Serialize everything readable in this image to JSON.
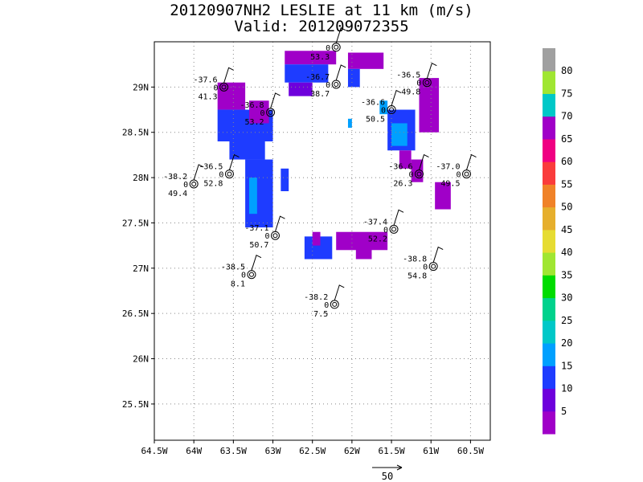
{
  "title_line1": "20120907NH2 LESLIE at 11 km (m/s)",
  "title_line2": "Valid: 201209072355",
  "chart_data": {
    "type": "heatmap",
    "title": "20120907NH2 LESLIE at 11 km (m/s)",
    "subtitle": "Valid: 201209072355",
    "xlim": [
      -64.5,
      -60.25
    ],
    "ylim": [
      25.1,
      29.5
    ],
    "x_ticks": [
      -64.5,
      -64,
      -63.5,
      -63,
      -62.5,
      -62,
      -61.5,
      -61,
      -60.5
    ],
    "x_tick_labels": [
      "64.5W",
      "64W",
      "63.5W",
      "63W",
      "62.5W",
      "62W",
      "61.5W",
      "61W",
      "60.5W"
    ],
    "y_ticks": [
      25.5,
      26,
      26.5,
      27,
      27.5,
      28,
      28.5,
      29
    ],
    "y_tick_labels": [
      "25.5N",
      "26N",
      "26.5N",
      "27N",
      "27.5N",
      "28N",
      "28.5N",
      "29N"
    ],
    "grid": true,
    "colorbar": {
      "labels": [
        "5",
        "10",
        "15",
        "20",
        "25",
        "30",
        "35",
        "40",
        "45",
        "50",
        "55",
        "60",
        "65",
        "70",
        "75",
        "80"
      ],
      "colors": [
        "#a000c8",
        "#6e00dc",
        "#1e3cff",
        "#00a0ff",
        "#00c8c8",
        "#00d28c",
        "#00dc00",
        "#a0e632",
        "#e6dc32",
        "#e6af2d",
        "#f08228",
        "#fa3c3c",
        "#f00082",
        "#a000c8",
        "#00c8c8",
        "#a0e632",
        "#a0a0a0"
      ]
    },
    "wind_cells": [
      {
        "lon": -62.85,
        "lat": 29.25,
        "lon2": -62.2,
        "lat2": 29.4,
        "level": 13
      },
      {
        "lon": -62.85,
        "lat": 29.05,
        "lon2": -62.3,
        "lat2": 29.25,
        "level": 2
      },
      {
        "lon": -62.8,
        "lat": 28.9,
        "lon2": -62.5,
        "lat2": 29.05,
        "level": 1
      },
      {
        "lon": -62.05,
        "lat": 29.2,
        "lon2": -61.6,
        "lat2": 29.38,
        "level": 13
      },
      {
        "lon": -62.05,
        "lat": 29.0,
        "lon2": -61.9,
        "lat2": 29.2,
        "level": 2
      },
      {
        "lon": -63.7,
        "lat": 28.75,
        "lon2": -63.35,
        "lat2": 29.05,
        "level": 13
      },
      {
        "lon": -63.7,
        "lat": 28.4,
        "lon2": -63.0,
        "lat2": 28.75,
        "level": 2
      },
      {
        "lon": -63.55,
        "lat": 28.2,
        "lon2": -63.1,
        "lat2": 28.4,
        "level": 2
      },
      {
        "lon": -63.3,
        "lat": 28.6,
        "lon2": -63.05,
        "lat2": 28.85,
        "level": 13
      },
      {
        "lon": -63.35,
        "lat": 27.45,
        "lon2": -63.0,
        "lat2": 28.2,
        "level": 2
      },
      {
        "lon": -63.3,
        "lat": 27.6,
        "lon2": -63.2,
        "lat2": 28.0,
        "level": 3
      },
      {
        "lon": -62.9,
        "lat": 27.85,
        "lon2": -62.8,
        "lat2": 28.1,
        "level": 2
      },
      {
        "lon": -61.55,
        "lat": 28.3,
        "lon2": -61.2,
        "lat2": 28.75,
        "level": 2
      },
      {
        "lon": -61.5,
        "lat": 28.35,
        "lon2": -61.3,
        "lat2": 28.6,
        "level": 3
      },
      {
        "lon": -61.65,
        "lat": 28.7,
        "lon2": -61.55,
        "lat2": 28.85,
        "level": 3
      },
      {
        "lon": -61.4,
        "lat": 28.1,
        "lon2": -61.25,
        "lat2": 28.3,
        "level": 13
      },
      {
        "lon": -61.15,
        "lat": 28.5,
        "lon2": -60.9,
        "lat2": 29.1,
        "level": 13
      },
      {
        "lon": -61.25,
        "lat": 27.95,
        "lon2": -61.1,
        "lat2": 28.2,
        "level": 13
      },
      {
        "lon": -60.95,
        "lat": 27.65,
        "lon2": -60.75,
        "lat2": 27.95,
        "level": 13
      },
      {
        "lon": -62.2,
        "lat": 27.2,
        "lon2": -61.55,
        "lat2": 27.4,
        "level": 13
      },
      {
        "lon": -61.95,
        "lat": 27.1,
        "lon2": -61.75,
        "lat2": 27.25,
        "level": 13
      },
      {
        "lon": -62.6,
        "lat": 27.1,
        "lon2": -62.25,
        "lat2": 27.35,
        "level": 2
      },
      {
        "lon": -62.5,
        "lat": 27.25,
        "lon2": -62.4,
        "lat2": 27.4,
        "level": 13
      },
      {
        "lon": -62.05,
        "lat": 28.55,
        "lon2": -62.0,
        "lat2": 28.65,
        "level": 3
      }
    ],
    "stations": [
      {
        "lon": -62.2,
        "lat": 29.44,
        "top": "",
        "mid": "0",
        "bottom": "53.3"
      },
      {
        "lon": -62.2,
        "lat": 29.03,
        "top": "-36.7",
        "mid": "0",
        "bottom": "38.7"
      },
      {
        "lon": -61.05,
        "lat": 29.05,
        "top": "-36.5",
        "mid": "0",
        "bottom": "49.8"
      },
      {
        "lon": -63.62,
        "lat": 29.0,
        "top": "-37.6",
        "mid": "0",
        "bottom": "41.3"
      },
      {
        "lon": -63.03,
        "lat": 28.72,
        "top": "-36.8",
        "mid": "0",
        "bottom": "53.2"
      },
      {
        "lon": -61.5,
        "lat": 28.75,
        "top": "-36.6",
        "mid": "0",
        "bottom": "50.5"
      },
      {
        "lon": -63.55,
        "lat": 28.04,
        "top": "-36.5",
        "mid": "0",
        "bottom": "52.8"
      },
      {
        "lon": -64.0,
        "lat": 27.93,
        "top": "-38.2",
        "mid": "0",
        "bottom": "49.4"
      },
      {
        "lon": -61.15,
        "lat": 28.04,
        "top": "-36.6",
        "mid": "0",
        "bottom": "26.3"
      },
      {
        "lon": -60.55,
        "lat": 28.04,
        "top": "-37.0",
        "mid": "0",
        "bottom": "49.5"
      },
      {
        "lon": -62.97,
        "lat": 27.36,
        "top": "-37.1",
        "mid": "0",
        "bottom": "50.7"
      },
      {
        "lon": -61.47,
        "lat": 27.43,
        "top": "-37.4",
        "mid": "0",
        "bottom": "52.2"
      },
      {
        "lon": -60.97,
        "lat": 27.02,
        "top": "-38.8",
        "mid": "0",
        "bottom": "54.8"
      },
      {
        "lon": -63.27,
        "lat": 26.93,
        "top": "-38.5",
        "mid": "0",
        "bottom": "8.1"
      },
      {
        "lon": -62.22,
        "lat": 26.6,
        "top": "-38.2",
        "mid": "0",
        "bottom": "7.5"
      }
    ],
    "reference_vector_label": "50"
  }
}
